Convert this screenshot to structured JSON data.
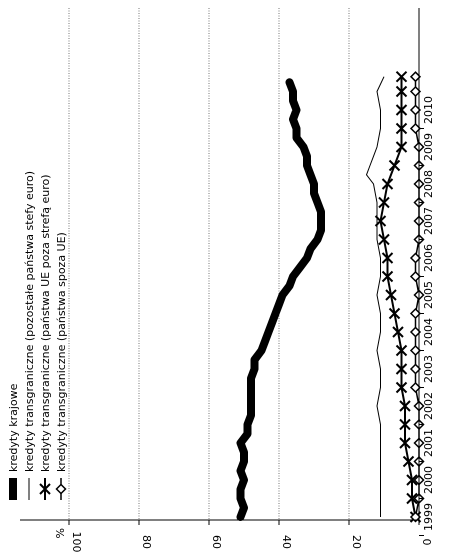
{
  "chart_data": {
    "type": "line",
    "orientation": "rotated-90",
    "unit_label": "%",
    "x_ticks": [
      "1999",
      "2000",
      "2001",
      "2002",
      "2003",
      "2004",
      "2005",
      "2006",
      "2007",
      "2008",
      "2009",
      "2010"
    ],
    "x_range": [
      1999.0,
      2010.9
    ],
    "y_ticks": [
      0,
      20,
      40,
      60,
      80,
      100
    ],
    "y_tick_labels": [
      "0",
      "20",
      "40",
      "60",
      "80",
      "100"
    ],
    "ylim": [
      0,
      100
    ],
    "grid": true,
    "legend_position": "top-left",
    "series": [
      {
        "name": "kredyty krajowe",
        "style": "thick",
        "x": [
          1999.0,
          1999.25,
          1999.5,
          1999.75,
          2000.0,
          2000.25,
          2000.5,
          2000.75,
          2001.0,
          2001.25,
          2001.5,
          2001.75,
          2002.0,
          2002.25,
          2002.5,
          2002.75,
          2003.0,
          2003.25,
          2003.5,
          2003.75,
          2004.0,
          2004.25,
          2004.5,
          2004.75,
          2005.0,
          2005.25,
          2005.5,
          2005.75,
          2006.0,
          2006.25,
          2006.5,
          2006.75,
          2007.0,
          2007.25,
          2007.5,
          2007.75,
          2008.0,
          2008.25,
          2008.5,
          2008.75,
          2009.0,
          2009.25,
          2009.5,
          2009.75,
          2010.0,
          2010.25,
          2010.5,
          2010.75
        ],
        "y": [
          51,
          50,
          51,
          51,
          50,
          51,
          50,
          50,
          51,
          49,
          49,
          48,
          48,
          48,
          48,
          48,
          47,
          47,
          45,
          44,
          43,
          42,
          41,
          40,
          39,
          37,
          36,
          34,
          32,
          31,
          29,
          28,
          28,
          28,
          29,
          30,
          30,
          31,
          32,
          32,
          33,
          35,
          35,
          36,
          35,
          36,
          36,
          37
        ]
      },
      {
        "name": "kredyty transgraniczne (pozostałe państwa stefy euro)",
        "style": "thin",
        "x": [
          1999.0,
          1999.5,
          2000.0,
          2000.5,
          2001.0,
          2001.5,
          2002.0,
          2002.5,
          2003.0,
          2003.5,
          2004.0,
          2004.5,
          2005.0,
          2005.5,
          2006.0,
          2006.5,
          2007.0,
          2007.5,
          2008.0,
          2008.25,
          2008.5,
          2008.75,
          2009.0,
          2009.5,
          2010.0,
          2010.5,
          2010.9
        ],
        "y": [
          11,
          11,
          11,
          11,
          11,
          11,
          12,
          11,
          11,
          12,
          11,
          11,
          12,
          11,
          11,
          12,
          12,
          12,
          13,
          15,
          14,
          13,
          12,
          11,
          11,
          12,
          10
        ]
      },
      {
        "name": "kredyty transgraniczne (państwa UE poza strefą euro)",
        "style": "cross",
        "x": [
          1999.0,
          1999.5,
          2000.0,
          2000.5,
          2001.0,
          2001.5,
          2002.0,
          2002.5,
          2003.0,
          2003.5,
          2004.0,
          2004.5,
          2005.0,
          2005.5,
          2006.0,
          2006.5,
          2007.0,
          2007.5,
          2008.0,
          2008.5,
          2009.0,
          2009.5,
          2010.0,
          2010.5,
          2010.9
        ],
        "y": [
          1,
          2,
          2,
          3,
          4,
          4,
          4,
          5,
          5,
          5,
          6,
          7,
          8,
          9,
          9,
          10,
          11,
          10,
          9,
          7,
          5,
          5,
          5,
          5,
          5
        ]
      },
      {
        "name": "kredyty transgraniczne (państwa spoza UE)",
        "style": "diamond",
        "x": [
          1999.0,
          1999.5,
          2000.0,
          2000.5,
          2001.0,
          2001.5,
          2002.0,
          2002.5,
          2003.0,
          2003.5,
          2004.0,
          2004.5,
          2005.0,
          2005.5,
          2006.0,
          2006.5,
          2007.0,
          2007.5,
          2008.0,
          2008.5,
          2009.0,
          2009.5,
          2010.0,
          2010.5,
          2010.9
        ],
        "y": [
          1,
          0,
          0,
          0,
          0,
          0,
          0,
          1,
          1,
          1,
          1,
          1,
          0,
          1,
          1,
          0,
          0,
          0,
          0,
          0,
          0,
          1,
          1,
          1,
          1
        ]
      }
    ]
  }
}
